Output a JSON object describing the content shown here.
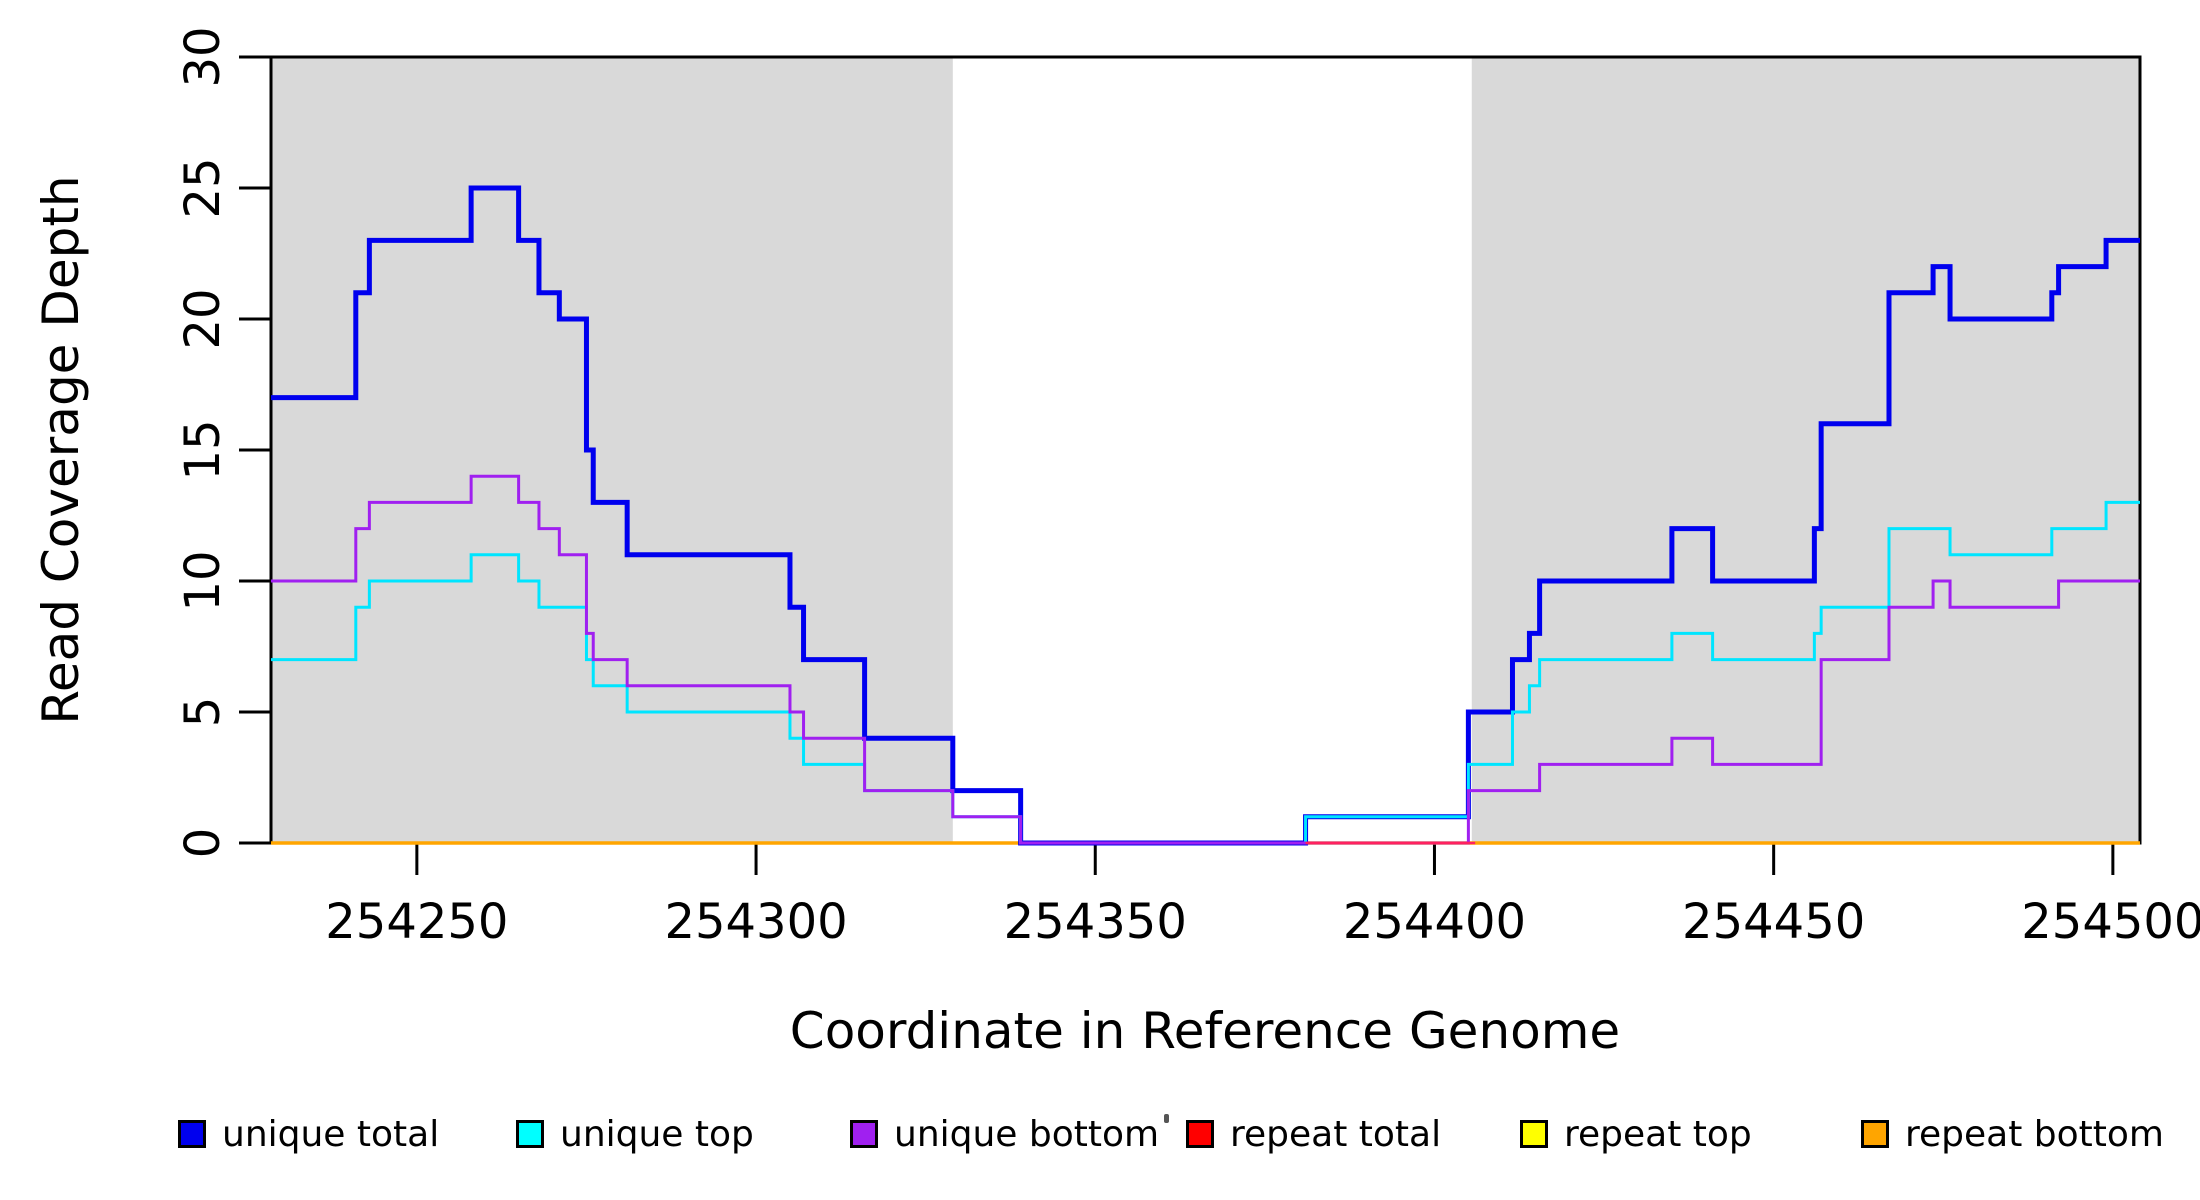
{
  "chart_data": {
    "type": "line",
    "subtype": "step-coverage-plot",
    "title": "",
    "xlabel": "Coordinate in Reference Genome",
    "ylabel": "Read Coverage Depth",
    "xlim": [
      254228.5,
      254504
    ],
    "ylim": [
      0,
      30
    ],
    "x_ticks": [
      254250,
      254300,
      254350,
      254400,
      254450,
      254500
    ],
    "x_tick_labels": [
      "254250",
      "254300",
      "254350",
      "254400",
      "254450",
      "254500"
    ],
    "y_ticks": [
      0,
      5,
      10,
      15,
      20,
      25,
      30
    ],
    "y_tick_labels": [
      "0",
      "5",
      "10",
      "15",
      "20",
      "25",
      "30"
    ],
    "grid": false,
    "legend_position": "bottom",
    "colors": {
      "background": "#ffffff",
      "shaded_band": "#D9D9D9",
      "axis": "#000000",
      "unique_total": "#0000EE",
      "unique_top": "#00E5FF",
      "unique_bottom": "#A020F0",
      "repeat_total": "#FF0000",
      "repeat_top": "#FFFF00",
      "repeat_bottom": "#FFA500"
    },
    "shaded_regions": [
      {
        "x1": 254228.5,
        "x2": 254329,
        "note": "left gray band"
      },
      {
        "x1": 254405.5,
        "x2": 254504,
        "note": "right gray band"
      }
    ],
    "x_end": 254504,
    "draw_order": [
      "repeat top",
      "repeat total",
      "repeat bottom",
      "unique total",
      "unique top",
      "unique bottom"
    ],
    "series": [
      {
        "name": "unique total",
        "color": "#0000EE",
        "width": 5,
        "steps": [
          [
            254228.5,
            17
          ],
          [
            254241,
            21
          ],
          [
            254243,
            23
          ],
          [
            254258,
            25
          ],
          [
            254265,
            23
          ],
          [
            254268,
            21
          ],
          [
            254271,
            20
          ],
          [
            254275,
            15
          ],
          [
            254276,
            13
          ],
          [
            254281,
            11
          ],
          [
            254305,
            9
          ],
          [
            254307,
            7
          ],
          [
            254316,
            4
          ],
          [
            254329,
            2
          ],
          [
            254339,
            0
          ],
          [
            254381,
            1
          ],
          [
            254405,
            5
          ],
          [
            254411.5,
            7
          ],
          [
            254414,
            8
          ],
          [
            254415.5,
            10
          ],
          [
            254435,
            12
          ],
          [
            254441,
            10
          ],
          [
            254456,
            12
          ],
          [
            254457,
            16
          ],
          [
            254467,
            21
          ],
          [
            254473.5,
            22
          ],
          [
            254476,
            20
          ],
          [
            254491,
            21
          ],
          [
            254492,
            22
          ],
          [
            254499,
            23
          ]
        ]
      },
      {
        "name": "unique top",
        "color": "#00E5FF",
        "width": 3,
        "steps": [
          [
            254228.5,
            7
          ],
          [
            254241,
            9
          ],
          [
            254243,
            10
          ],
          [
            254258,
            11
          ],
          [
            254265,
            10
          ],
          [
            254268,
            9
          ],
          [
            254275,
            7
          ],
          [
            254276,
            6
          ],
          [
            254281,
            5
          ],
          [
            254305,
            4
          ],
          [
            254307,
            3
          ],
          [
            254316,
            2
          ],
          [
            254329,
            1
          ],
          [
            254339,
            0
          ],
          [
            254381,
            1
          ],
          [
            254405,
            3
          ],
          [
            254411.5,
            5
          ],
          [
            254414,
            6
          ],
          [
            254415.5,
            7
          ],
          [
            254435,
            8
          ],
          [
            254441,
            7
          ],
          [
            254456,
            8
          ],
          [
            254457,
            9
          ],
          [
            254467,
            12
          ],
          [
            254476,
            11
          ],
          [
            254491,
            12
          ],
          [
            254499,
            13
          ]
        ]
      },
      {
        "name": "unique bottom",
        "color": "#A020F0",
        "width": 3,
        "steps": [
          [
            254228.5,
            10
          ],
          [
            254241,
            12
          ],
          [
            254243,
            13
          ],
          [
            254258,
            14
          ],
          [
            254265,
            13
          ],
          [
            254268,
            12
          ],
          [
            254271,
            11
          ],
          [
            254275,
            8
          ],
          [
            254276,
            7
          ],
          [
            254281,
            6
          ],
          [
            254305,
            5
          ],
          [
            254307,
            4
          ],
          [
            254316,
            2
          ],
          [
            254329,
            1
          ],
          [
            254339,
            0
          ],
          [
            254405,
            2
          ],
          [
            254415.5,
            3
          ],
          [
            254435,
            4
          ],
          [
            254441,
            3
          ],
          [
            254457,
            7
          ],
          [
            254467,
            9
          ],
          [
            254473.5,
            10
          ],
          [
            254476,
            9
          ],
          [
            254492,
            10
          ]
        ]
      },
      {
        "name": "repeat total",
        "color": "#FF0000",
        "width": 3,
        "steps": [
          [
            254228.5,
            0
          ]
        ]
      },
      {
        "name": "repeat top",
        "color": "#FFFF00",
        "width": 3,
        "steps": [
          [
            254228.5,
            0
          ]
        ]
      },
      {
        "name": "repeat bottom",
        "color": "#FFA500",
        "width": 3.5,
        "steps": [
          [
            254228.5,
            0
          ]
        ]
      }
    ],
    "overlays": [
      {
        "name": "repeat-total-visible-zero-segment",
        "color": "#FF2060",
        "width": 2.5,
        "y": 0,
        "x1": 254381,
        "x2": 254406
      }
    ],
    "legend": {
      "items": [
        {
          "label": "unique total",
          "color": "#0000EE"
        },
        {
          "label": "unique top",
          "color": "#00FFFF"
        },
        {
          "label": "unique bottom",
          "color": "#A020F0"
        },
        {
          "label": "repeat total",
          "color": "#FF0000"
        },
        {
          "label": "repeat top",
          "color": "#FFFF00"
        },
        {
          "label": "repeat bottom",
          "color": "#FFA500"
        }
      ]
    }
  }
}
